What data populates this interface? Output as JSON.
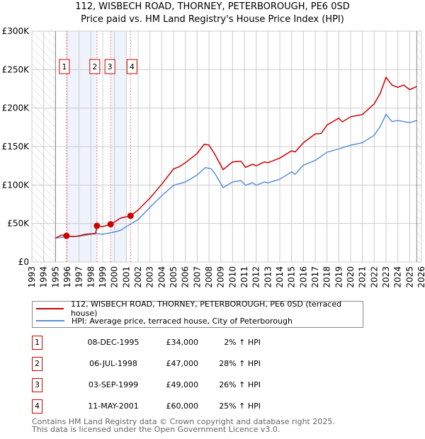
{
  "chart_data": {
    "type": "line",
    "title": "112, WISBECH ROAD, THORNEY, PETERBOROUGH, PE6 0SD",
    "subtitle": "Price paid vs. HM Land Registry's House Price Index (HPI)",
    "xlim": [
      1993,
      2026
    ],
    "ylim": [
      0,
      300000
    ],
    "yticks": [
      0,
      50000,
      100000,
      150000,
      200000,
      250000,
      300000
    ],
    "ytick_labels": [
      "£0",
      "£50K",
      "£100K",
      "£150K",
      "£200K",
      "£250K",
      "£300K"
    ],
    "xticks": [
      "1993",
      "1994",
      "1995",
      "1996",
      "1997",
      "1998",
      "1999",
      "2000",
      "2001",
      "2002",
      "2003",
      "2004",
      "2005",
      "2006",
      "2007",
      "2008",
      "2009",
      "2010",
      "2011",
      "2012",
      "2013",
      "2014",
      "2015",
      "2016",
      "2017",
      "2018",
      "2019",
      "2020",
      "2021",
      "2022",
      "2023",
      "2024",
      "2025",
      "2026"
    ],
    "grid": true,
    "hatched_ranges": [
      [
        1993,
        1995
      ],
      [
        2025.6,
        2026
      ]
    ],
    "shaded_ranges": [
      [
        1996.0,
        1998.5
      ],
      [
        1999.7,
        2001.0
      ]
    ],
    "series": [
      {
        "name": "112, WISBECH ROAD, THORNEY, PETERBOROUGH, PE6 0SD (terraced house)",
        "color": "#cc0000",
        "x": [
          1995,
          1995.5,
          1995.93,
          1996.5,
          1997,
          1997.5,
          1998.4,
          1998.51,
          1999,
          1999.67,
          2000,
          2000.5,
          2001.36,
          2002,
          2003,
          2004,
          2005,
          2005.5,
          2006,
          2007,
          2007.6,
          2008,
          2008.5,
          2009.2,
          2010,
          2010.7,
          2011.1,
          2011.7,
          2012,
          2012.7,
          2013,
          2014,
          2015,
          2015.3,
          2016,
          2017,
          2017.5,
          2018,
          2019,
          2019.3,
          2020,
          2021,
          2022,
          2022.5,
          2023,
          2023.5,
          2024,
          2024.5,
          2025,
          2025.6
        ],
        "y": [
          31000,
          35000,
          34000,
          33000,
          34000,
          36000,
          37000,
          47000,
          46000,
          49000,
          52000,
          57000,
          60000,
          67500,
          83000,
          101000,
          121000,
          124000,
          129000,
          141000,
          153000,
          152000,
          140000,
          120000,
          130000,
          131000,
          123000,
          127000,
          125000,
          130000,
          129000,
          135000,
          144500,
          143000,
          155000,
          166500,
          167000,
          178000,
          187000,
          182000,
          188700,
          191700,
          205500,
          219000,
          240000,
          230000,
          227000,
          230000,
          224000,
          228000
        ]
      },
      {
        "name": "HPI: Average price, terraced house, City of Peterborough",
        "color": "#5b8fd6",
        "x": [
          1995,
          1996,
          1997,
          1998,
          1998.5,
          1999,
          2000,
          2000.5,
          2001,
          2002,
          2003,
          2004,
          2005,
          2006,
          2007,
          2007.7,
          2008.2,
          2008.5,
          2009.2,
          2010,
          2010.7,
          2011.1,
          2011.7,
          2012,
          2012.7,
          2013,
          2014,
          2015,
          2015.3,
          2016,
          2017,
          2018,
          2019,
          2020,
          2021,
          2022,
          2022.5,
          2023,
          2023.5,
          2024,
          2025,
          2025.6
        ],
        "y": [
          31000,
          33000,
          33500,
          36000,
          37000,
          36000,
          39000,
          41000,
          46000,
          55000,
          71000,
          86000,
          99700,
          104000,
          113000,
          122700,
          121000,
          115000,
          96600,
          104000,
          105800,
          99700,
          103000,
          99700,
          104000,
          102800,
          107600,
          117000,
          114000,
          125800,
          132000,
          142600,
          147000,
          151800,
          155000,
          164700,
          176000,
          192000,
          182500,
          184000,
          181000,
          184000
        ]
      }
    ],
    "sales": [
      {
        "num": "1",
        "x": 1995.93,
        "price": 34000
      },
      {
        "num": "2",
        "x": 1998.51,
        "price": 47000
      },
      {
        "num": "3",
        "x": 1999.67,
        "price": 49000
      },
      {
        "num": "4",
        "x": 2001.36,
        "price": 60000
      }
    ]
  },
  "header": {
    "title": "112, WISBECH ROAD, THORNEY, PETERBOROUGH, PE6 0SD",
    "subtitle": "Price paid vs. HM Land Registry's House Price Index (HPI)"
  },
  "legend": {
    "property": "112, WISBECH ROAD, THORNEY, PETERBOROUGH, PE6 0SD (terraced house)",
    "hpi": "HPI: Average price, terraced house, City of Peterborough"
  },
  "table": [
    {
      "num": "1",
      "date": "08-DEC-1995",
      "price": "£34,000",
      "hpi": "2% ↑ HPI"
    },
    {
      "num": "2",
      "date": "06-JUL-1998",
      "price": "£47,000",
      "hpi": "28% ↑ HPI"
    },
    {
      "num": "3",
      "date": "03-SEP-1999",
      "price": "£49,000",
      "hpi": "26% ↑ HPI"
    },
    {
      "num": "4",
      "date": "11-MAY-2001",
      "price": "£60,000",
      "hpi": "25% ↑ HPI"
    }
  ],
  "footer": {
    "line1": "Contains HM Land Registry data © Crown copyright and database right 2025.",
    "line2": "This data is licensed under the Open Government Licence v3.0."
  }
}
